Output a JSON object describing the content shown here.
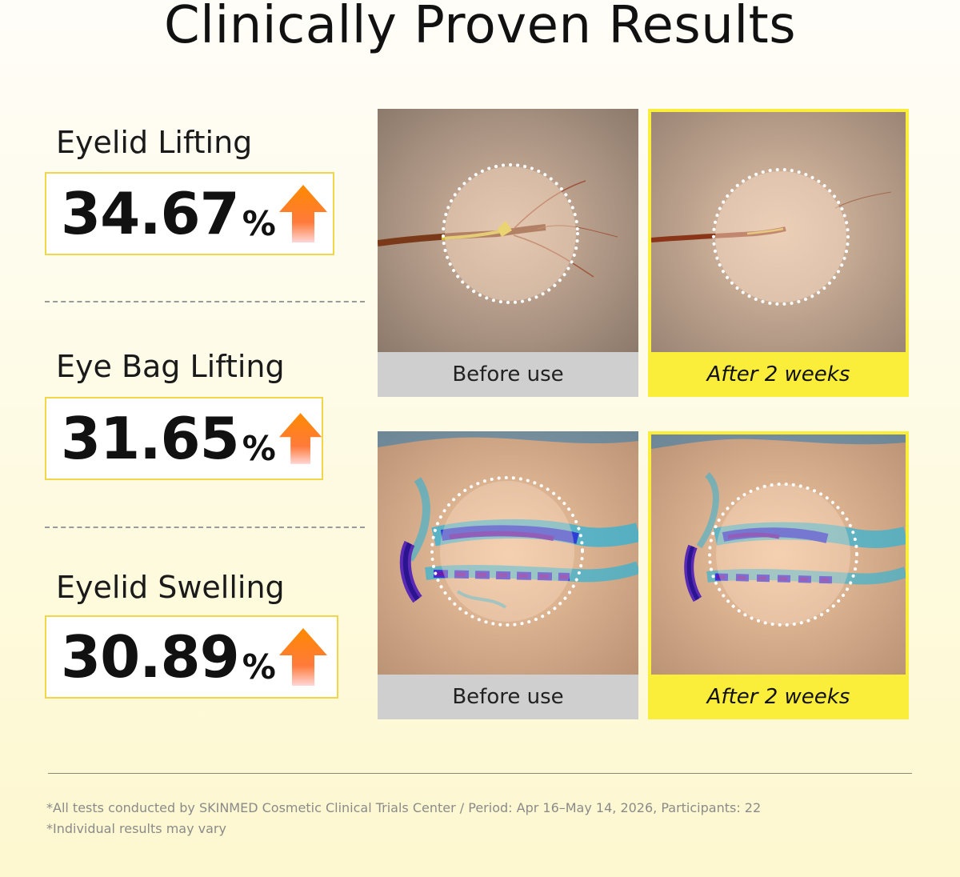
{
  "title": "Clinically Proven Results",
  "metrics": [
    {
      "label": "Eyelid Lifting",
      "value": "34.67",
      "unit": "%"
    },
    {
      "label": "Eye Bag Lifting",
      "value": "31.65",
      "unit": "%"
    },
    {
      "label": "Eyelid Swelling",
      "value": "30.89",
      "unit": "%"
    }
  ],
  "comparisons": [
    {
      "before_caption": "Before use",
      "after_caption": "After 2 weeks"
    },
    {
      "before_caption": "Before use",
      "after_caption": "After 2 weeks"
    }
  ],
  "footnotes": [
    "*All tests conducted by SKINMED Cosmetic Clinical Trials Center / Period: Apr 16–May 14, 2026, Participants: 22",
    "*Individual results may vary"
  ],
  "colors": {
    "accent_yellow": "#fbee3a",
    "box_border": "#f2d64a",
    "arrow_top": "#ff8a00",
    "arrow_bottom": "#ffd0d0",
    "before_caption_bg": "#cfcfcf"
  },
  "icons": {
    "arrow": "up-arrow-icon"
  }
}
